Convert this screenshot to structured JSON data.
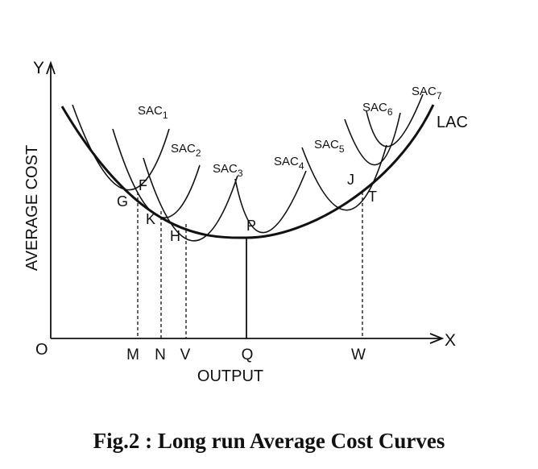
{
  "diagram": {
    "axis_labels": {
      "y": "Y",
      "x": "X",
      "origin": "O",
      "y_title": "AVERAGE COST",
      "x_title": "OUTPUT"
    },
    "curves": {
      "lac": "LAC",
      "sac": [
        {
          "base": "SAC",
          "sub": "1"
        },
        {
          "base": "SAC",
          "sub": "2"
        },
        {
          "base": "SAC",
          "sub": "3"
        },
        {
          "base": "SAC",
          "sub": "4"
        },
        {
          "base": "SAC",
          "sub": "5"
        },
        {
          "base": "SAC",
          "sub": "6"
        },
        {
          "base": "SAC",
          "sub": "7"
        }
      ]
    },
    "points": {
      "g": "G",
      "f": "F",
      "k": "K",
      "h": "H",
      "p": "P",
      "j": "J",
      "t": "T"
    },
    "output_levels": {
      "m": "M",
      "n": "N",
      "v": "V",
      "q": "Q",
      "w": "W"
    }
  },
  "caption": "Fig.2 : Long run Average Cost Curves"
}
